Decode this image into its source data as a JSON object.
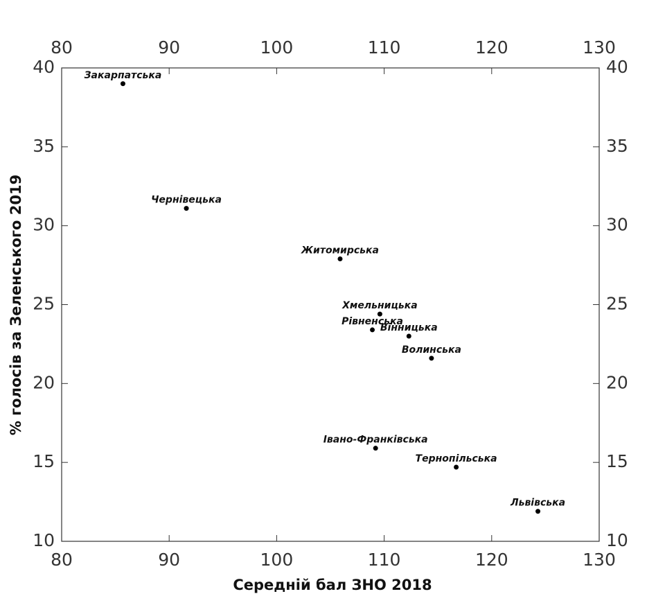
{
  "chart_data": {
    "type": "scatter",
    "xlabel": "Середній бал ЗНО 2018",
    "ylabel": "% голосів за Зеленського 2019",
    "labels": [
      "Закарпатська",
      "Чернівецька",
      "Житомирська",
      "Хмельницька",
      "Рівненська",
      "Вінницька",
      "Волинська",
      "Івано-Франківська",
      "Тернопільська",
      "Львівська"
    ],
    "x": [
      85.7,
      91.6,
      105.9,
      109.6,
      108.9,
      112.3,
      114.4,
      109.2,
      116.7,
      124.3
    ],
    "values": [
      39.0,
      31.1,
      27.9,
      24.4,
      23.4,
      23.0,
      21.6,
      15.9,
      14.7,
      11.9
    ],
    "color": "#000000",
    "xlim": [
      80,
      130
    ],
    "xticks": [
      80,
      90,
      100,
      110,
      120,
      130
    ],
    "ylim": [
      10,
      40
    ],
    "yticks": [
      10,
      15,
      20,
      25,
      30,
      35,
      40
    ]
  }
}
